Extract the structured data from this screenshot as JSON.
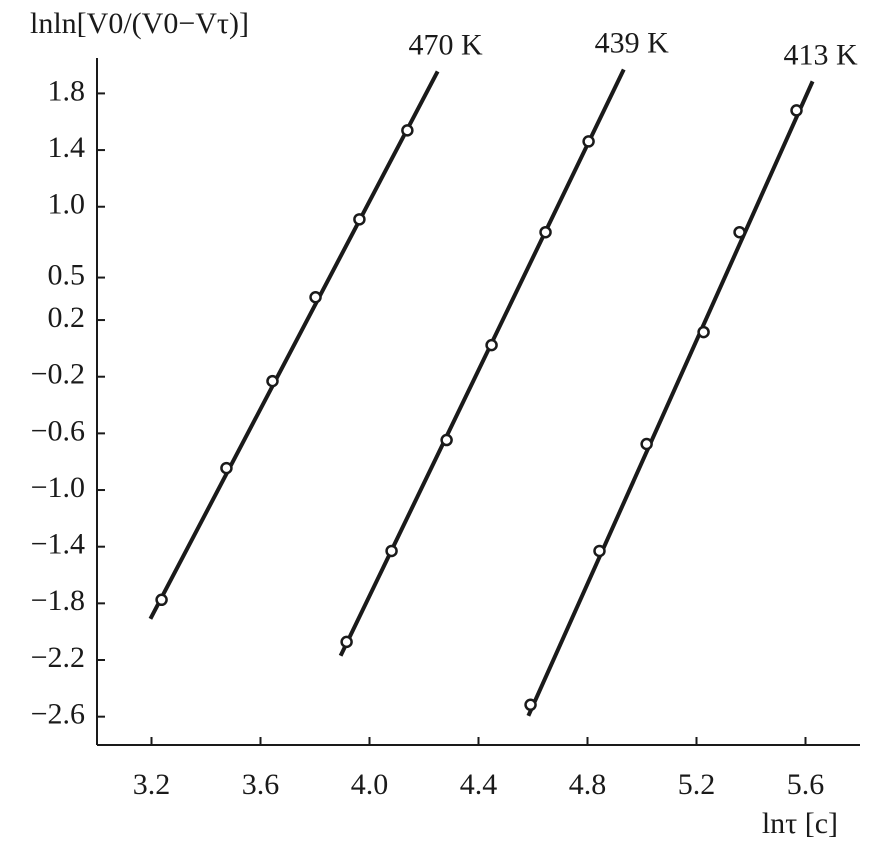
{
  "chart_data": {
    "type": "scatter",
    "y_label": "lnln[V0/(V0−Vτ)]",
    "x_label": "lnτ [c]",
    "xlim": [
      3.0,
      5.8
    ],
    "ylim": [
      -2.8,
      2.05
    ],
    "xticks": [
      3.2,
      3.6,
      {
        "value": 4,
        "label": "4.0"
      },
      4.4,
      4.8,
      5.2,
      5.6
    ],
    "yticks": [
      1.8,
      1.4,
      {
        "value": 1,
        "label": "1.0"
      },
      0.5,
      0.2,
      {
        "value": -0.2,
        "label": "−0.2"
      },
      {
        "value": -0.6,
        "label": "−0.6"
      },
      {
        "value": -1,
        "label": "−1.0"
      },
      {
        "value": -1.4,
        "label": "−1.4"
      },
      {
        "value": -1.8,
        "label": "−1.8"
      },
      {
        "value": -2.2,
        "label": "−2.2"
      },
      {
        "value": -2.6,
        "label": "−2.6"
      }
    ],
    "color": "#1a1a1a",
    "series": [
      {
        "name": "470 K",
        "x": [
          3.237,
          3.475,
          3.644,
          3.802,
          3.963,
          4.139
        ],
        "values": [
          -1.775,
          -0.845,
          -0.231,
          0.361,
          0.911,
          1.539
        ],
        "line_x": [
          3.196,
          4.25
        ],
        "line_y": [
          -1.909,
          1.955
        ]
      },
      {
        "name": "439 K",
        "x": [
          3.916,
          4.081,
          4.283,
          4.448,
          4.646,
          4.804
        ],
        "values": [
          -2.072,
          -1.43,
          -0.647,
          0.023,
          0.82,
          1.461
        ],
        "line_x": [
          3.894,
          4.933
        ],
        "line_y": [
          -2.17,
          1.969
        ]
      },
      {
        "name": "413 K",
        "x": [
          4.591,
          4.844,
          5.017,
          5.226,
          5.358,
          5.567
        ],
        "values": [
          -2.516,
          -1.43,
          -0.675,
          0.115,
          0.82,
          1.68
        ],
        "line_x": [
          4.583,
          5.626
        ],
        "line_y": [
          -2.594,
          1.885
        ]
      }
    ]
  }
}
